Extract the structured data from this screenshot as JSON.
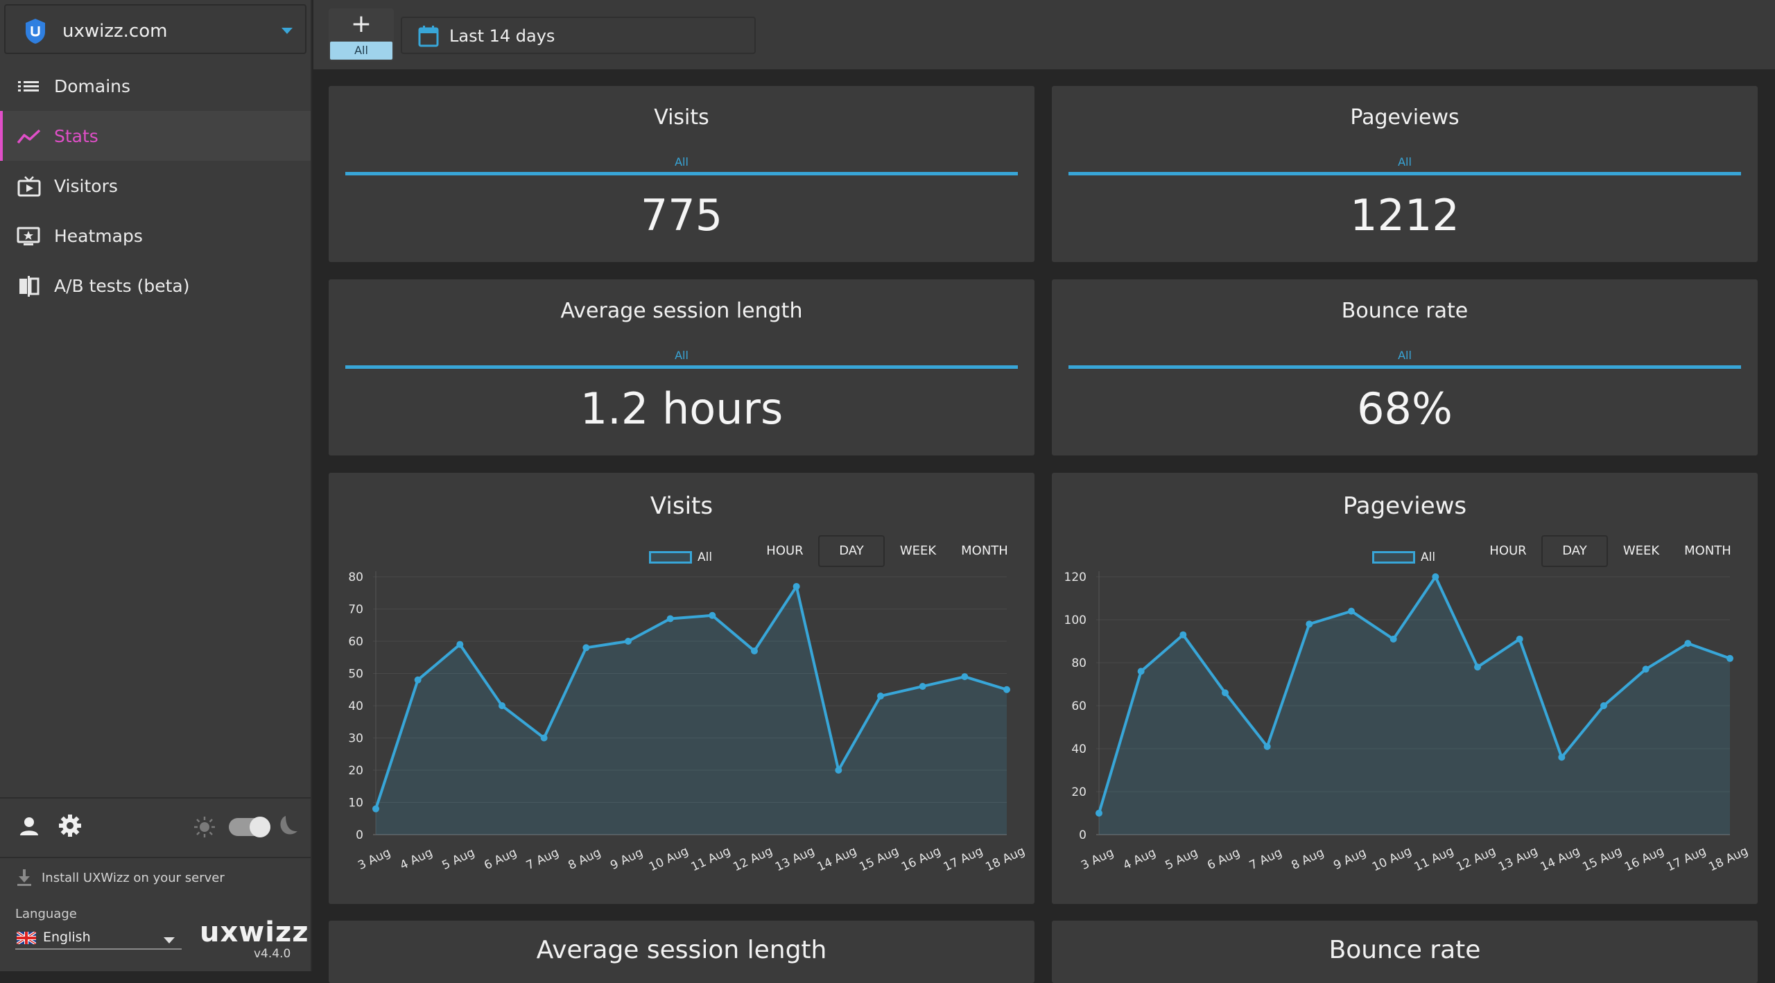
{
  "site": {
    "name": "uxwizz.com"
  },
  "nav": [
    {
      "label": "Domains",
      "icon": "list-icon"
    },
    {
      "label": "Stats",
      "icon": "trend-icon",
      "active": true
    },
    {
      "label": "Visitors",
      "icon": "tv-play-icon"
    },
    {
      "label": "Heatmaps",
      "icon": "monitor-star-icon"
    },
    {
      "label": "A/B tests (beta)",
      "icon": "compare-icon"
    }
  ],
  "footer": {
    "install_label": "Install UXWizz on your server",
    "language_title": "Language",
    "language_value": "English",
    "brand": "uxwizz",
    "version": "v4.4.0"
  },
  "toolbar": {
    "add_label": "All",
    "add_symbol": "+",
    "date_range": "Last 14 days"
  },
  "metrics": {
    "visits": {
      "title": "Visits",
      "segment": "All",
      "value": "775"
    },
    "pageviews": {
      "title": "Pageviews",
      "segment": "All",
      "value": "1212"
    },
    "session": {
      "title": "Average session length",
      "segment": "All",
      "value": "1.2 hours"
    },
    "bounce": {
      "title": "Bounce rate",
      "segment": "All",
      "value": "68%"
    }
  },
  "granularity": [
    "HOUR",
    "DAY",
    "WEEK",
    "MONTH"
  ],
  "granularity_active": "DAY",
  "bottom_titles": {
    "left": "Average session length",
    "right": "Bounce rate"
  },
  "colors": {
    "accent": "#38a6d8",
    "active_nav": "#e04fc8",
    "card": "#3b3b3b",
    "background": "#262626"
  },
  "chart_data": [
    {
      "type": "area",
      "title": "Visits",
      "categories": [
        "3 Aug",
        "4 Aug",
        "5 Aug",
        "6 Aug",
        "7 Aug",
        "8 Aug",
        "9 Aug",
        "10 Aug",
        "11 Aug",
        "12 Aug",
        "13 Aug",
        "14 Aug",
        "15 Aug",
        "16 Aug",
        "17 Aug",
        "18 Aug"
      ],
      "series": [
        {
          "name": "All",
          "values": [
            8,
            48,
            59,
            40,
            30,
            58,
            60,
            67,
            68,
            57,
            77,
            20,
            43,
            46,
            49,
            45
          ]
        }
      ],
      "ylim": [
        0,
        80
      ],
      "yticks": [
        0,
        10,
        20,
        30,
        40,
        50,
        60,
        70,
        80
      ],
      "grid": true,
      "legend": "top"
    },
    {
      "type": "area",
      "title": "Pageviews",
      "categories": [
        "3 Aug",
        "4 Aug",
        "5 Aug",
        "6 Aug",
        "7 Aug",
        "8 Aug",
        "9 Aug",
        "10 Aug",
        "11 Aug",
        "12 Aug",
        "13 Aug",
        "14 Aug",
        "15 Aug",
        "16 Aug",
        "17 Aug",
        "18 Aug"
      ],
      "series": [
        {
          "name": "All",
          "values": [
            10,
            76,
            93,
            66,
            41,
            98,
            104,
            91,
            120,
            78,
            91,
            36,
            60,
            77,
            89,
            82
          ]
        }
      ],
      "ylim": [
        0,
        120
      ],
      "yticks": [
        0,
        20,
        40,
        60,
        80,
        100,
        120
      ],
      "grid": true,
      "legend": "top"
    }
  ]
}
